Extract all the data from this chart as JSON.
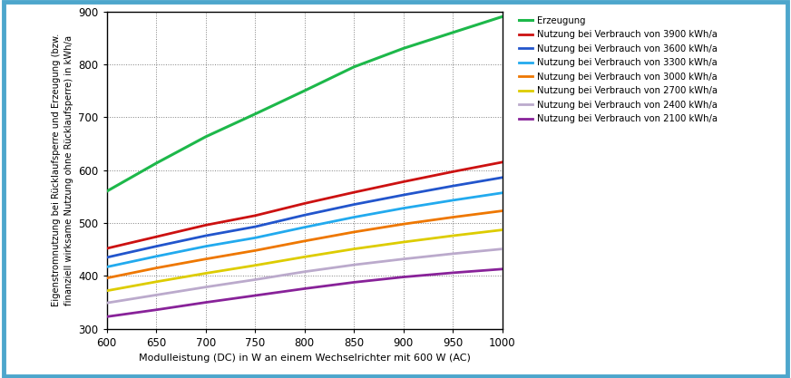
{
  "x": [
    600,
    650,
    700,
    750,
    800,
    850,
    900,
    950,
    1000
  ],
  "series": {
    "Erzeugung": {
      "color": "#1db84a",
      "linewidth": 2.2,
      "values": [
        560,
        613,
        663,
        706,
        750,
        795,
        830,
        860,
        890
      ]
    },
    "3900": {
      "color": "#cc1111",
      "linewidth": 2.0,
      "label": "Nutzung bei Verbrauch von 3900 kWh/a",
      "values": [
        452,
        474,
        496,
        514,
        537,
        558,
        578,
        597,
        615
      ]
    },
    "3600": {
      "color": "#2255cc",
      "linewidth": 2.0,
      "label": "Nutzung bei Verbrauch von 3600 kWh/a",
      "values": [
        435,
        456,
        476,
        493,
        515,
        535,
        553,
        570,
        586
      ]
    },
    "3300": {
      "color": "#22aaee",
      "linewidth": 2.0,
      "label": "Nutzung bei Verbrauch von 3300 kWh/a",
      "values": [
        417,
        437,
        456,
        472,
        492,
        511,
        528,
        543,
        557
      ]
    },
    "3000": {
      "color": "#ee7700",
      "linewidth": 2.0,
      "label": "Nutzung bei Verbrauch von 3000 kWh/a",
      "values": [
        396,
        415,
        432,
        448,
        466,
        483,
        498,
        511,
        523
      ]
    },
    "2700": {
      "color": "#ddcc00",
      "linewidth": 2.0,
      "label": "Nutzung bei Verbrauch von 2700 kWh/a",
      "values": [
        372,
        389,
        405,
        420,
        436,
        451,
        464,
        476,
        487
      ]
    },
    "2400": {
      "color": "#bbaacc",
      "linewidth": 2.0,
      "label": "Nutzung bei Verbrauch von 2400 kWh/a",
      "values": [
        349,
        364,
        379,
        393,
        408,
        421,
        432,
        442,
        451
      ]
    },
    "2100": {
      "color": "#882299",
      "linewidth": 2.0,
      "label": "Nutzung bei Verbrauch von 2100 kWh/a",
      "values": [
        323,
        336,
        350,
        363,
        376,
        388,
        398,
        406,
        413
      ]
    }
  },
  "xlabel": "Modulleistung (DC) in W an einem Wechselrichter mit 600 W (AC)",
  "ylabel": "Eigenstromnutzung bei Rücklaufsperre und Erzeugung (bzw.\nfinanziell wirksame Nutzung ohne Rücklaufsperre) in kWh/a",
  "xlim": [
    600,
    1000
  ],
  "ylim": [
    300,
    900
  ],
  "xticks": [
    600,
    650,
    700,
    750,
    800,
    850,
    900,
    950,
    1000
  ],
  "yticks": [
    300,
    400,
    500,
    600,
    700,
    800,
    900
  ],
  "background_color": "#ffffff",
  "border_color": "#4da6cc",
  "grid_color": "#000000",
  "legend_label_erzeugung": "Erzeugung"
}
